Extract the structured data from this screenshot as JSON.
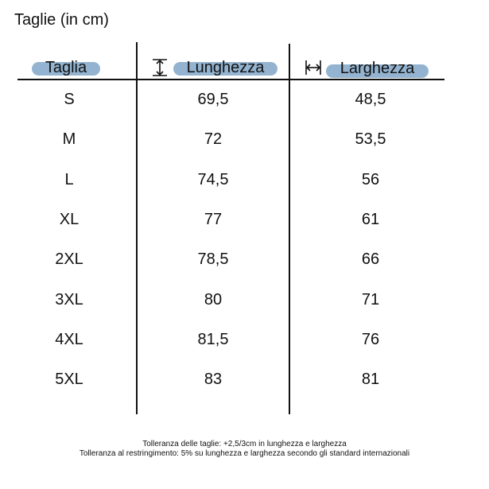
{
  "title": "Taglie (in cm)",
  "headers": {
    "size": "Taglia",
    "length": "Lunghezza",
    "width": "Larghezza"
  },
  "icons": {
    "length": "vertical-arrow-icon",
    "width": "horizontal-arrow-icon"
  },
  "colors": {
    "pill": "#93b3d0"
  },
  "rows": [
    {
      "size": "S",
      "length": "69,5",
      "width": "48,5"
    },
    {
      "size": "M",
      "length": "72",
      "width": "53,5"
    },
    {
      "size": "L",
      "length": "74,5",
      "width": "56"
    },
    {
      "size": "XL",
      "length": "77",
      "width": "61"
    },
    {
      "size": "2XL",
      "length": "78,5",
      "width": "66"
    },
    {
      "size": "3XL",
      "length": "80",
      "width": "71"
    },
    {
      "size": "4XL",
      "length": "81,5",
      "width": "76"
    },
    {
      "size": "5XL",
      "length": "83",
      "width": "81"
    }
  ],
  "notes": [
    "Tolleranza delle taglie: +2,5/3cm in lunghezza e larghezza",
    "Tolleranza al restringimento: 5% su lunghezza e larghezza secondo gli standard internazionali"
  ]
}
